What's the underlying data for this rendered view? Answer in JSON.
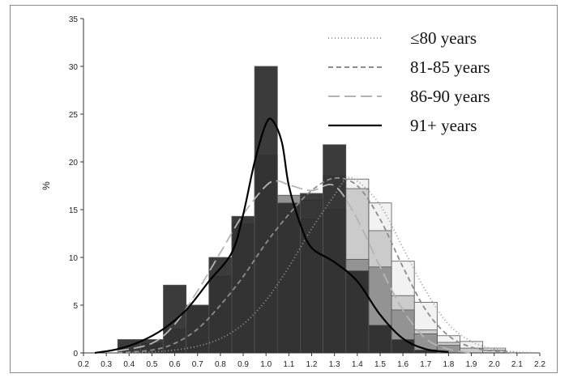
{
  "chart_data": {
    "type": "bar",
    "title": "",
    "xlabel": "",
    "ylabel": "%",
    "xlim": [
      0.2,
      2.2
    ],
    "ylim": [
      0,
      35
    ],
    "x_ticks": [
      "0.2",
      "0.3",
      "0.4",
      "0.5",
      "0.6",
      "0.7",
      "0.8",
      "0.9",
      "1.0",
      "1.1",
      "1.2",
      "1.3",
      "1.4",
      "1.5",
      "1.6",
      "1.7",
      "1.8",
      "1.9",
      "2.0",
      "2.1",
      "2.2"
    ],
    "y_ticks": [
      "0",
      "5",
      "10",
      "15",
      "20",
      "25",
      "30",
      "35"
    ],
    "bin_width": 0.1,
    "legend_position": "top-right",
    "series": [
      {
        "name": "≤80 years",
        "color": "#f2f2f2",
        "line_color": "#9a9a9a",
        "dash": "1,3",
        "bin_centers": [
          0.7,
          0.8,
          0.9,
          1.0,
          1.1,
          1.2,
          1.3,
          1.4,
          1.5,
          1.6,
          1.7,
          1.8,
          1.9,
          2.0
        ],
        "values": [
          0.3,
          1.0,
          1.5,
          3.0,
          5.0,
          10.5,
          14.0,
          18.2,
          15.7,
          9.6,
          5.3,
          1.8,
          1.2,
          0.5
        ],
        "curve": [
          [
            0.4,
            0.0
          ],
          [
            0.5,
            0.1
          ],
          [
            0.6,
            0.3
          ],
          [
            0.7,
            0.7
          ],
          [
            0.8,
            1.5
          ],
          [
            0.9,
            3.0
          ],
          [
            1.0,
            5.5
          ],
          [
            1.1,
            9.0
          ],
          [
            1.2,
            13.0
          ],
          [
            1.3,
            16.5
          ],
          [
            1.35,
            18.2
          ],
          [
            1.4,
            18.0
          ],
          [
            1.5,
            15.5
          ],
          [
            1.6,
            11.0
          ],
          [
            1.7,
            6.5
          ],
          [
            1.8,
            3.0
          ],
          [
            1.9,
            1.2
          ],
          [
            2.0,
            0.4
          ],
          [
            2.1,
            0.1
          ],
          [
            2.2,
            0.0
          ]
        ]
      },
      {
        "name": "81-85 years",
        "color": "#c8c8c8",
        "line_color": "#8c8c8c",
        "dash": "6,4",
        "bin_centers": [
          0.6,
          0.7,
          0.8,
          0.9,
          1.0,
          1.1,
          1.2,
          1.3,
          1.4,
          1.5,
          1.6,
          1.7,
          1.8,
          1.9,
          2.0
        ],
        "values": [
          0.5,
          1.5,
          3.5,
          7.0,
          12.0,
          16.5,
          16.0,
          18.5,
          17.2,
          12.8,
          6.0,
          2.4,
          1.1,
          0.5,
          0.3
        ],
        "curve": [
          [
            0.35,
            0.0
          ],
          [
            0.5,
            0.3
          ],
          [
            0.6,
            1.0
          ],
          [
            0.7,
            2.5
          ],
          [
            0.8,
            5.0
          ],
          [
            0.9,
            8.0
          ],
          [
            1.0,
            11.5
          ],
          [
            1.1,
            14.5
          ],
          [
            1.2,
            17.0
          ],
          [
            1.3,
            18.3
          ],
          [
            1.4,
            17.5
          ],
          [
            1.5,
            14.0
          ],
          [
            1.6,
            9.0
          ],
          [
            1.7,
            4.5
          ],
          [
            1.8,
            1.8
          ],
          [
            1.9,
            0.6
          ],
          [
            2.0,
            0.2
          ],
          [
            2.1,
            0.0
          ]
        ]
      },
      {
        "name": "86-90 years",
        "color": "#8e8e8e",
        "line_color": "#b4b4b4",
        "dash": "14,6",
        "bin_centers": [
          0.5,
          0.6,
          0.7,
          0.8,
          0.9,
          1.0,
          1.1,
          1.2,
          1.3,
          1.4,
          1.5,
          1.6,
          1.7,
          1.8
        ],
        "values": [
          1.0,
          2.5,
          5.0,
          8.0,
          13.5,
          20.7,
          16.5,
          14.0,
          15.0,
          9.8,
          9.0,
          4.5,
          2.0,
          0.8
        ],
        "curve": [
          [
            0.35,
            0.2
          ],
          [
            0.5,
            1.0
          ],
          [
            0.6,
            3.0
          ],
          [
            0.7,
            6.5
          ],
          [
            0.8,
            10.5
          ],
          [
            0.9,
            14.5
          ],
          [
            1.0,
            17.5
          ],
          [
            1.05,
            18.0
          ],
          [
            1.1,
            17.6
          ],
          [
            1.2,
            17.0
          ],
          [
            1.3,
            17.5
          ],
          [
            1.4,
            14.0
          ],
          [
            1.5,
            9.0
          ],
          [
            1.6,
            4.5
          ],
          [
            1.7,
            1.5
          ],
          [
            1.8,
            0.4
          ],
          [
            1.9,
            0.0
          ]
        ]
      },
      {
        "name": "91+ years",
        "color": "#2a2a2a",
        "line_color": "#000000",
        "dash": "",
        "bin_centers": [
          0.4,
          0.5,
          0.6,
          0.7,
          0.8,
          0.9,
          1.0,
          1.1,
          1.2,
          1.3,
          1.4,
          1.5,
          1.6,
          1.7
        ],
        "values": [
          1.4,
          1.4,
          7.1,
          5.0,
          10.0,
          14.3,
          30.0,
          15.7,
          16.7,
          21.8,
          8.6,
          2.9,
          1.4,
          0.3
        ],
        "curve": [
          [
            0.25,
            0.0
          ],
          [
            0.35,
            0.4
          ],
          [
            0.45,
            1.2
          ],
          [
            0.55,
            2.5
          ],
          [
            0.65,
            4.5
          ],
          [
            0.75,
            7.5
          ],
          [
            0.85,
            10.5
          ],
          [
            0.9,
            14.5
          ],
          [
            0.95,
            20.0
          ],
          [
            1.0,
            24.0
          ],
          [
            1.03,
            24.3
          ],
          [
            1.07,
            22.0
          ],
          [
            1.1,
            17.5
          ],
          [
            1.15,
            13.5
          ],
          [
            1.2,
            11.0
          ],
          [
            1.3,
            9.5
          ],
          [
            1.4,
            7.5
          ],
          [
            1.5,
            4.0
          ],
          [
            1.6,
            1.5
          ],
          [
            1.7,
            0.4
          ],
          [
            1.8,
            0.1
          ]
        ]
      }
    ]
  }
}
